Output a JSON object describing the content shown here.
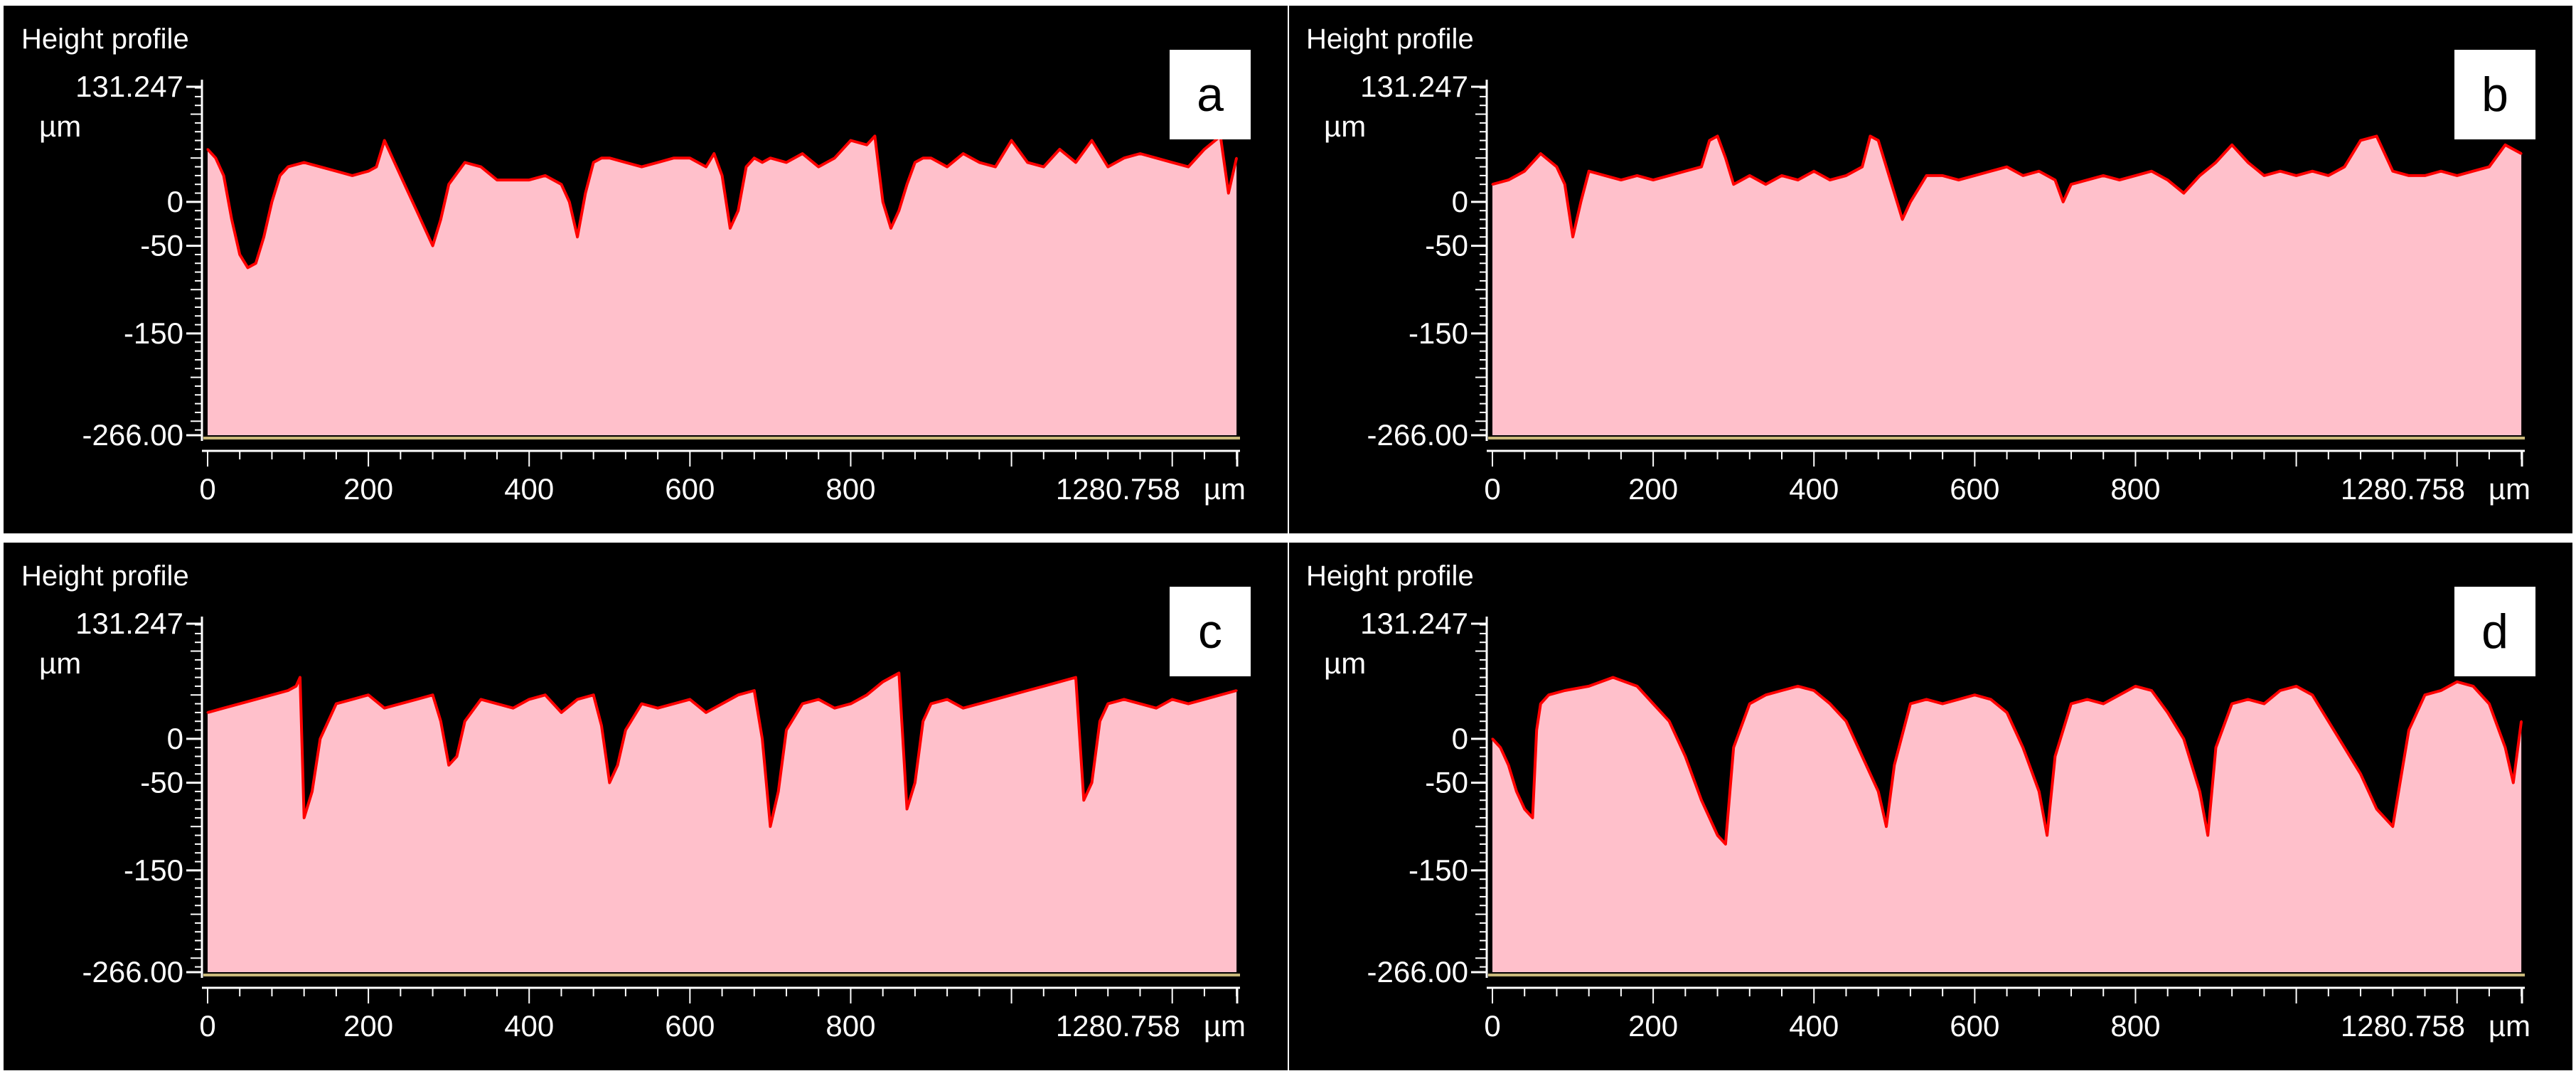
{
  "figure": {
    "colors": {
      "background": "#000000",
      "fill": "#ffc0cb",
      "line": "#ff0000",
      "text": "#ffffff",
      "baseline": "#c9b87a",
      "label_box": "#ffffff",
      "label_text": "#000000",
      "separator": "#ffffff"
    }
  },
  "chart_data": [
    {
      "type": "area",
      "panel_label": "a",
      "title": "Height profile",
      "y_unit": "µm",
      "x_unit": "µm",
      "ylim": [
        -266.0,
        131.247
      ],
      "xlim": [
        0,
        1280.758
      ],
      "y_ticks": [
        "131.247",
        "0",
        "-50",
        "-150",
        "-266.00"
      ],
      "x_ticks": [
        "0",
        "200",
        "400",
        "600",
        "800",
        "1280.758"
      ],
      "x": [
        0,
        10,
        20,
        30,
        40,
        50,
        60,
        70,
        80,
        90,
        100,
        120,
        140,
        160,
        180,
        200,
        210,
        220,
        230,
        240,
        250,
        260,
        270,
        280,
        290,
        300,
        320,
        340,
        360,
        380,
        400,
        420,
        440,
        450,
        460,
        470,
        480,
        490,
        500,
        520,
        540,
        560,
        580,
        600,
        620,
        630,
        640,
        650,
        660,
        670,
        680,
        690,
        700,
        720,
        740,
        760,
        780,
        800,
        820,
        830,
        840,
        850,
        860,
        870,
        880,
        890,
        900,
        920,
        940,
        960,
        980,
        1000,
        1020,
        1040,
        1060,
        1080,
        1100,
        1120,
        1140,
        1160,
        1180,
        1200,
        1220,
        1240,
        1260,
        1270,
        1280
      ],
      "y": [
        60,
        50,
        30,
        -20,
        -60,
        -75,
        -70,
        -40,
        0,
        30,
        40,
        45,
        40,
        35,
        30,
        35,
        40,
        70,
        50,
        30,
        10,
        -10,
        -30,
        -50,
        -20,
        20,
        45,
        40,
        25,
        25,
        25,
        30,
        20,
        0,
        -40,
        10,
        45,
        50,
        50,
        45,
        40,
        45,
        50,
        50,
        40,
        55,
        30,
        -30,
        -10,
        40,
        50,
        45,
        50,
        45,
        55,
        40,
        50,
        70,
        65,
        75,
        0,
        -30,
        -10,
        20,
        45,
        50,
        50,
        40,
        55,
        45,
        40,
        70,
        45,
        40,
        60,
        45,
        70,
        40,
        50,
        55,
        50,
        45,
        40,
        60,
        75,
        10,
        50
      ]
    },
    {
      "type": "area",
      "panel_label": "b",
      "title": "Height profile",
      "y_unit": "µm",
      "x_unit": "µm",
      "ylim": [
        -266.0,
        131.247
      ],
      "xlim": [
        0,
        1280.758
      ],
      "y_ticks": [
        "131.247",
        "0",
        "-50",
        "-150",
        "-266.00"
      ],
      "x_ticks": [
        "0",
        "200",
        "400",
        "600",
        "800",
        "1280.758"
      ],
      "x": [
        0,
        20,
        40,
        60,
        80,
        90,
        100,
        110,
        120,
        140,
        160,
        180,
        200,
        220,
        240,
        260,
        270,
        280,
        290,
        300,
        310,
        320,
        340,
        360,
        380,
        400,
        420,
        440,
        460,
        470,
        480,
        490,
        500,
        510,
        520,
        530,
        540,
        560,
        580,
        600,
        620,
        640,
        660,
        680,
        700,
        710,
        720,
        740,
        760,
        780,
        800,
        820,
        840,
        860,
        880,
        900,
        920,
        940,
        960,
        980,
        1000,
        1020,
        1040,
        1060,
        1080,
        1100,
        1120,
        1140,
        1160,
        1180,
        1200,
        1220,
        1240,
        1260,
        1280
      ],
      "y": [
        20,
        25,
        35,
        55,
        40,
        20,
        -40,
        0,
        35,
        30,
        25,
        30,
        25,
        30,
        35,
        40,
        70,
        75,
        50,
        20,
        25,
        30,
        20,
        30,
        25,
        35,
        25,
        30,
        40,
        75,
        70,
        40,
        10,
        -20,
        0,
        15,
        30,
        30,
        25,
        30,
        35,
        40,
        30,
        35,
        25,
        0,
        20,
        25,
        30,
        25,
        30,
        35,
        25,
        10,
        30,
        45,
        65,
        45,
        30,
        35,
        30,
        35,
        30,
        40,
        70,
        75,
        35,
        30,
        30,
        35,
        30,
        35,
        40,
        65,
        55
      ]
    },
    {
      "type": "area",
      "panel_label": "c",
      "title": "Height profile",
      "y_unit": "µm",
      "x_unit": "µm",
      "ylim": [
        -266.0,
        131.247
      ],
      "xlim": [
        0,
        1280.758
      ],
      "y_ticks": [
        "131.247",
        "0",
        "-50",
        "-150",
        "-266.00"
      ],
      "x_ticks": [
        "0",
        "200",
        "400",
        "600",
        "800",
        "1280.758"
      ],
      "x": [
        0,
        20,
        40,
        60,
        80,
        100,
        110,
        115,
        120,
        130,
        140,
        160,
        180,
        200,
        220,
        240,
        260,
        280,
        290,
        300,
        310,
        320,
        340,
        360,
        380,
        400,
        420,
        440,
        460,
        480,
        490,
        500,
        510,
        520,
        540,
        560,
        580,
        600,
        620,
        640,
        660,
        680,
        690,
        700,
        710,
        720,
        740,
        760,
        780,
        800,
        820,
        840,
        860,
        870,
        880,
        890,
        900,
        920,
        940,
        960,
        980,
        1000,
        1020,
        1040,
        1060,
        1080,
        1090,
        1100,
        1110,
        1120,
        1140,
        1160,
        1180,
        1200,
        1220,
        1240,
        1260,
        1280
      ],
      "y": [
        30,
        35,
        40,
        45,
        50,
        55,
        60,
        70,
        -90,
        -60,
        0,
        40,
        45,
        50,
        35,
        40,
        45,
        50,
        20,
        -30,
        -20,
        20,
        45,
        40,
        35,
        45,
        50,
        30,
        45,
        50,
        15,
        -50,
        -30,
        10,
        40,
        35,
        40,
        45,
        30,
        40,
        50,
        55,
        0,
        -100,
        -60,
        10,
        40,
        45,
        35,
        40,
        50,
        65,
        75,
        -80,
        -50,
        20,
        40,
        45,
        35,
        40,
        45,
        50,
        55,
        60,
        65,
        70,
        -70,
        -50,
        20,
        40,
        45,
        40,
        35,
        45,
        40,
        45,
        50,
        55
      ]
    },
    {
      "type": "area",
      "panel_label": "d",
      "title": "Height profile",
      "y_unit": "µm",
      "x_unit": "µm",
      "ylim": [
        -266.0,
        131.247
      ],
      "xlim": [
        0,
        1280.758
      ],
      "y_ticks": [
        "131.247",
        "0",
        "-50",
        "-150",
        "-266.00"
      ],
      "x_ticks": [
        "0",
        "200",
        "400",
        "600",
        "800",
        "1280.758"
      ],
      "x": [
        0,
        10,
        20,
        30,
        40,
        50,
        55,
        60,
        70,
        90,
        120,
        150,
        180,
        200,
        220,
        240,
        260,
        280,
        290,
        300,
        320,
        340,
        360,
        380,
        400,
        420,
        440,
        460,
        480,
        490,
        500,
        520,
        540,
        560,
        580,
        600,
        620,
        640,
        660,
        680,
        690,
        700,
        720,
        740,
        760,
        780,
        800,
        820,
        840,
        860,
        880,
        890,
        900,
        920,
        940,
        960,
        980,
        1000,
        1020,
        1040,
        1060,
        1080,
        1100,
        1120,
        1140,
        1160,
        1180,
        1200,
        1220,
        1240,
        1260,
        1270,
        1280
      ],
      "y": [
        0,
        -10,
        -30,
        -60,
        -80,
        -90,
        10,
        40,
        50,
        55,
        60,
        70,
        60,
        40,
        20,
        -20,
        -70,
        -110,
        -120,
        -10,
        40,
        50,
        55,
        60,
        55,
        40,
        20,
        -20,
        -60,
        -100,
        -30,
        40,
        45,
        40,
        45,
        50,
        45,
        30,
        -10,
        -60,
        -110,
        -20,
        40,
        45,
        40,
        50,
        60,
        55,
        30,
        0,
        -60,
        -110,
        -10,
        40,
        45,
        40,
        55,
        60,
        50,
        20,
        -10,
        -40,
        -80,
        -100,
        10,
        50,
        55,
        65,
        60,
        40,
        -10,
        -50,
        20
      ]
    }
  ]
}
